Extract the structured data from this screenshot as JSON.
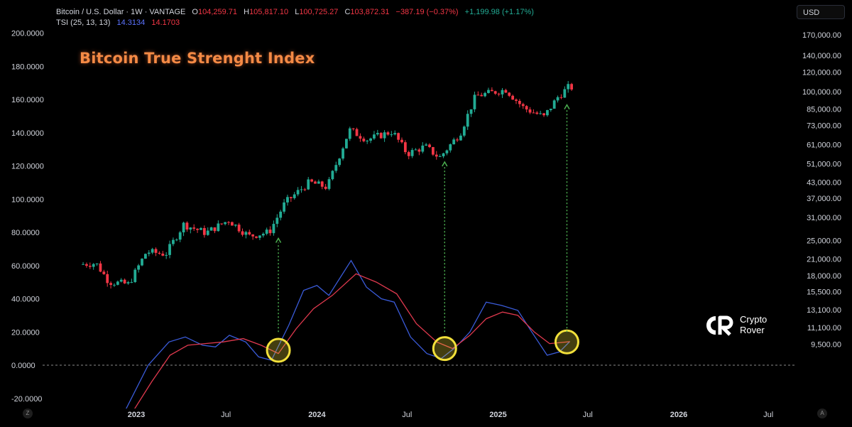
{
  "header": {
    "symbol": "Bitcoin / U.S. Dollar · 1W · VANTAGE",
    "open_label": "O",
    "open": "104,259.71",
    "high_label": "H",
    "high": "105,817.10",
    "low_label": "L",
    "low": "100,725.27",
    "close_label": "C",
    "close": "103,872.31",
    "change": "−387.19 (−0.37%)",
    "change2": "+1,199.98 (+1.17%)",
    "indicator": "TSI (25, 13, 13)",
    "tsi_value": "14.3134",
    "signal_value": "14.1703"
  },
  "overlay_title": "Bitcoin True Strenght Index",
  "currency_button": "USD",
  "brand": {
    "line1": "Crypto",
    "line2": "Rover"
  },
  "corner_buttons": {
    "left": "Z",
    "right": "A"
  },
  "colors": {
    "up": "#22ab94",
    "down": "#f23645",
    "tsi": "#3a5bd9",
    "signal": "#e0394e",
    "circle": "#f2e03a",
    "arrow": "#4caf50",
    "title": "#f48a45"
  },
  "chart_data": {
    "type": "candlestick+line",
    "title": "Bitcoin True Strenght Index",
    "x_ticks": [
      "2023",
      "Jul",
      "2024",
      "Jul",
      "2025",
      "Jul",
      "2026",
      "Jul"
    ],
    "x_tick_dates": [
      "2023-01-01",
      "2023-07-01",
      "2024-01-01",
      "2024-07-01",
      "2025-01-01",
      "2025-07-01",
      "2026-01-01",
      "2026-07-01"
    ],
    "x_range": [
      "2022-09-12",
      "2026-09-28"
    ],
    "left_axis": {
      "label": "TSI",
      "ticks": [
        "200.0000",
        "180.0000",
        "160.0000",
        "140.0000",
        "120.0000",
        "100.0000",
        "80.0000",
        "60.0000",
        "40.0000",
        "20.0000",
        "0.0000",
        "-20.0000"
      ],
      "range": [
        -20,
        200
      ]
    },
    "right_axis": {
      "label": "USD",
      "scale": "log",
      "ticks": [
        "170,000.00",
        "140,000.00",
        "120,000.00",
        "100,000.00",
        "85,000.00",
        "73,000.00",
        "61,000.00",
        "51,000.00",
        "43,000.00",
        "37,000.00",
        "31,000.00",
        "25,000.00",
        "21,000.00",
        "18,000.00",
        "15,500.00",
        "13,100.00",
        "11,100.00",
        "9,500.00"
      ]
    },
    "price_anchors": [
      {
        "date": "2022-09-12",
        "price": 20000
      },
      {
        "date": "2022-10-15",
        "price": 20200
      },
      {
        "date": "2022-11-10",
        "price": 17000
      },
      {
        "date": "2022-12-20",
        "price": 16600
      },
      {
        "date": "2023-01-25",
        "price": 22500
      },
      {
        "date": "2023-03-05",
        "price": 22000
      },
      {
        "date": "2023-04-10",
        "price": 29000
      },
      {
        "date": "2023-05-25",
        "price": 26800
      },
      {
        "date": "2023-07-10",
        "price": 30200
      },
      {
        "date": "2023-08-20",
        "price": 26000
      },
      {
        "date": "2023-09-30",
        "price": 27000
      },
      {
        "date": "2023-11-01",
        "price": 35500
      },
      {
        "date": "2023-12-20",
        "price": 43000
      },
      {
        "date": "2024-01-25",
        "price": 41000
      },
      {
        "date": "2024-03-10",
        "price": 70000
      },
      {
        "date": "2024-04-15",
        "price": 64000
      },
      {
        "date": "2024-06-05",
        "price": 69000
      },
      {
        "date": "2024-07-05",
        "price": 56000
      },
      {
        "date": "2024-08-10",
        "price": 60000
      },
      {
        "date": "2024-09-08",
        "price": 54000
      },
      {
        "date": "2024-10-20",
        "price": 68000
      },
      {
        "date": "2024-11-20",
        "price": 96000
      },
      {
        "date": "2025-01-20",
        "price": 102000
      },
      {
        "date": "2025-02-25",
        "price": 86000
      },
      {
        "date": "2025-04-07",
        "price": 79000
      },
      {
        "date": "2025-05-05",
        "price": 95000
      },
      {
        "date": "2025-05-26",
        "price": 104000
      }
    ],
    "series": [
      {
        "name": "TSI (25, 13, 13)",
        "color": "#3a5bd9",
        "points": [
          [
            "2022-12-05",
            -30
          ],
          [
            "2023-01-25",
            0
          ],
          [
            "2023-03-08",
            14
          ],
          [
            "2023-04-10",
            17
          ],
          [
            "2023-05-15",
            12
          ],
          [
            "2023-06-10",
            11
          ],
          [
            "2023-07-08",
            18
          ],
          [
            "2023-08-10",
            14
          ],
          [
            "2023-09-05",
            5
          ],
          [
            "2023-10-01",
            3
          ],
          [
            "2023-11-05",
            24
          ],
          [
            "2023-12-05",
            45
          ],
          [
            "2024-01-01",
            48
          ],
          [
            "2024-01-25",
            42
          ],
          [
            "2024-03-10",
            63
          ],
          [
            "2024-04-10",
            47
          ],
          [
            "2024-05-10",
            40
          ],
          [
            "2024-06-05",
            38
          ],
          [
            "2024-07-08",
            17
          ],
          [
            "2024-08-10",
            7
          ],
          [
            "2024-09-08",
            4
          ],
          [
            "2024-10-08",
            11
          ],
          [
            "2024-11-05",
            20
          ],
          [
            "2024-12-08",
            38
          ],
          [
            "2025-01-08",
            36
          ],
          [
            "2025-02-10",
            33
          ],
          [
            "2025-03-10",
            20
          ],
          [
            "2025-04-10",
            6
          ],
          [
            "2025-05-05",
            8
          ],
          [
            "2025-05-26",
            14.31
          ]
        ]
      },
      {
        "name": "Signal",
        "color": "#e0394e",
        "points": [
          [
            "2022-12-10",
            -35
          ],
          [
            "2023-02-01",
            -10
          ],
          [
            "2023-03-10",
            6
          ],
          [
            "2023-04-15",
            12
          ],
          [
            "2023-05-20",
            13
          ],
          [
            "2023-06-25",
            14
          ],
          [
            "2023-08-05",
            16
          ],
          [
            "2023-09-10",
            12
          ],
          [
            "2023-10-15",
            7
          ],
          [
            "2023-11-20",
            22
          ],
          [
            "2023-12-25",
            34
          ],
          [
            "2024-02-01",
            42
          ],
          [
            "2024-03-20",
            55
          ],
          [
            "2024-04-30",
            50
          ],
          [
            "2024-06-10",
            43
          ],
          [
            "2024-07-20",
            25
          ],
          [
            "2024-08-30",
            14
          ],
          [
            "2024-10-01",
            10
          ],
          [
            "2024-11-05",
            18
          ],
          [
            "2024-12-08",
            28
          ],
          [
            "2025-01-10",
            32
          ],
          [
            "2025-02-10",
            30
          ],
          [
            "2025-03-15",
            20
          ],
          [
            "2025-04-15",
            13
          ],
          [
            "2025-05-26",
            14.17
          ]
        ]
      }
    ],
    "annotations": [
      {
        "type": "circle",
        "date": "2023-10-15",
        "value": 9
      },
      {
        "type": "circle",
        "date": "2024-09-15",
        "value": 10
      },
      {
        "type": "circle",
        "date": "2025-05-20",
        "value": 14
      },
      {
        "type": "dotted-up-arrow",
        "date": "2023-10-15",
        "from": 20,
        "to_price": 26500
      },
      {
        "type": "dotted-up-arrow",
        "date": "2024-09-15",
        "from": 20,
        "to_price": 54000
      },
      {
        "type": "dotted-up-arrow",
        "date": "2025-05-20",
        "from": 20,
        "to_price": 92000
      }
    ],
    "zero_line": {
      "value": 0,
      "style": "dashed"
    },
    "grid": false,
    "legend": "top-left"
  }
}
